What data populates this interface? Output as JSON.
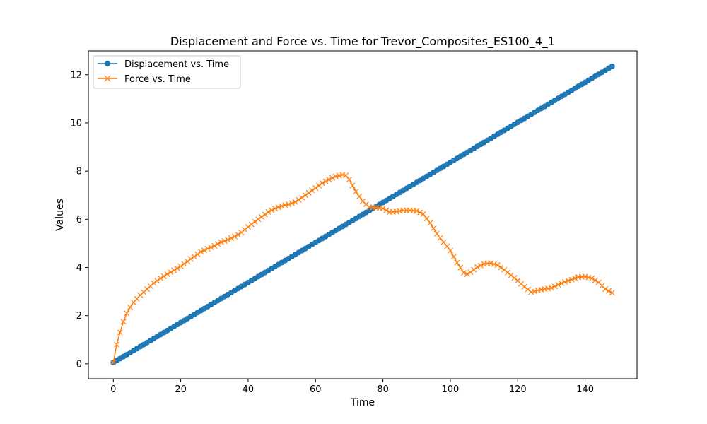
{
  "chart_data": {
    "type": "line",
    "title": "Displacement and Force vs. Time for Trevor_Composites_ES100_4_1",
    "xlabel": "Time",
    "ylabel": "Values",
    "xlim": [
      -7.4,
      155.4
    ],
    "ylim": [
      -0.62,
      12.99
    ],
    "xticks": [
      0,
      20,
      40,
      60,
      80,
      100,
      120,
      140
    ],
    "yticks": [
      0,
      2,
      4,
      6,
      8,
      10,
      12
    ],
    "grid": false,
    "legend_position": "upper-left",
    "series": [
      {
        "name": "Displacement vs. Time",
        "color": "#1f77b4",
        "marker": "circle",
        "x_start": 0,
        "x_step": 1,
        "x_end": 148,
        "y_start": 0.05,
        "y_end": 12.35
      },
      {
        "name": "Force vs. Time",
        "color": "#ff7f0e",
        "marker": "x",
        "x": [
          0,
          1,
          2,
          3,
          4,
          5,
          6,
          7,
          8,
          10,
          12,
          14,
          16,
          18,
          20,
          22,
          24,
          26,
          28,
          30,
          32,
          34,
          36,
          38,
          40,
          42,
          44,
          46,
          48,
          50,
          52,
          54,
          56,
          58,
          60,
          62,
          64,
          66,
          68,
          69,
          70,
          72,
          74,
          76,
          78,
          80,
          82,
          84,
          86,
          88,
          90,
          92,
          94,
          96,
          98,
          100,
          102,
          104,
          105,
          106,
          108,
          110,
          112,
          114,
          116,
          118,
          120,
          122,
          124,
          125,
          126,
          128,
          130,
          132,
          134,
          136,
          138,
          140,
          142,
          144,
          146,
          148
        ],
        "values": [
          0.05,
          0.8,
          1.3,
          1.75,
          2.1,
          2.35,
          2.55,
          2.7,
          2.85,
          3.1,
          3.35,
          3.55,
          3.72,
          3.88,
          4.05,
          4.25,
          4.45,
          4.65,
          4.78,
          4.9,
          5.05,
          5.15,
          5.28,
          5.45,
          5.68,
          5.9,
          6.1,
          6.3,
          6.45,
          6.55,
          6.62,
          6.72,
          6.9,
          7.1,
          7.3,
          7.5,
          7.65,
          7.78,
          7.85,
          7.82,
          7.65,
          7.15,
          6.75,
          6.5,
          6.48,
          6.45,
          6.3,
          6.32,
          6.37,
          6.37,
          6.35,
          6.22,
          5.85,
          5.4,
          5.05,
          4.7,
          4.2,
          3.78,
          3.72,
          3.8,
          4.02,
          4.15,
          4.18,
          4.1,
          3.9,
          3.68,
          3.45,
          3.2,
          2.98,
          3.0,
          3.05,
          3.1,
          3.15,
          3.28,
          3.4,
          3.5,
          3.6,
          3.62,
          3.55,
          3.38,
          3.1,
          2.95
        ]
      }
    ]
  }
}
